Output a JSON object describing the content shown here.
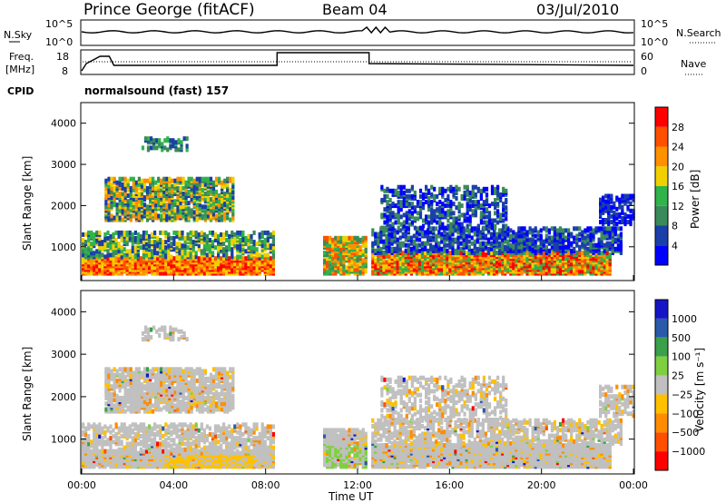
{
  "header": {
    "station": "Prince George (fitACF)",
    "beam": "Beam 04",
    "date": "03/Jul/2010"
  },
  "top_panels": {
    "nsky_label": "N.Sky",
    "nsearch_label": "N.Search",
    "nsky_ticks": [
      "10^5",
      "10^0"
    ],
    "nsearch_ticks": [
      "10^5",
      "10^0"
    ],
    "freq_label_line1": "Freq.",
    "freq_label_line2": "[MHz]",
    "freq_ticks": [
      "18",
      "8"
    ],
    "nave_label": "Nave",
    "nave_ticks": [
      "60",
      "0"
    ],
    "cpid_label": "CPID",
    "cpid_text": "normalsound (fast) 157"
  },
  "colors": {
    "power_scale": [
      "#0000ff",
      "#1a3fa8",
      "#3a8a5a",
      "#2fb34a",
      "#f0d000",
      "#ff9000",
      "#ff5000",
      "#ff0000"
    ],
    "velocity_scale": [
      "#1515c8",
      "#2a5aa8",
      "#3aa04a",
      "#7fd040",
      "#c0c0c0",
      "#ffc000",
      "#ff8c00",
      "#ff5000",
      "#ff0000"
    ]
  },
  "chart_data": [
    {
      "type": "heatmap",
      "name": "power",
      "ylabel": "Slant Range [km]",
      "yticks": [
        "1000",
        "2000",
        "3000",
        "4000"
      ],
      "ylim": [
        180,
        4500
      ],
      "xlim": [
        0,
        24
      ],
      "colorbar_label": "Power [dB]",
      "colorbar_ticks": [
        "4",
        "8",
        "12",
        "16",
        "20",
        "24",
        "28"
      ],
      "data_gaps_hours": [
        [
          8.6,
          10.4
        ]
      ]
    },
    {
      "type": "heatmap",
      "name": "velocity",
      "ylabel": "Slant Range [km]",
      "yticks": [
        "1000",
        "2000",
        "3000",
        "4000"
      ],
      "ylim": [
        180,
        4500
      ],
      "xlim": [
        0,
        24
      ],
      "colorbar_label": "Velocity [m s⁻¹]",
      "colorbar_ticks": [
        "1000",
        "500",
        "100",
        "25",
        "−25",
        "−100",
        "−500",
        "−1000"
      ],
      "xlabel": "Time UT",
      "xticks": [
        "00:00",
        "04:00",
        "08:00",
        "12:00",
        "16:00",
        "20:00",
        "00:00"
      ]
    }
  ]
}
